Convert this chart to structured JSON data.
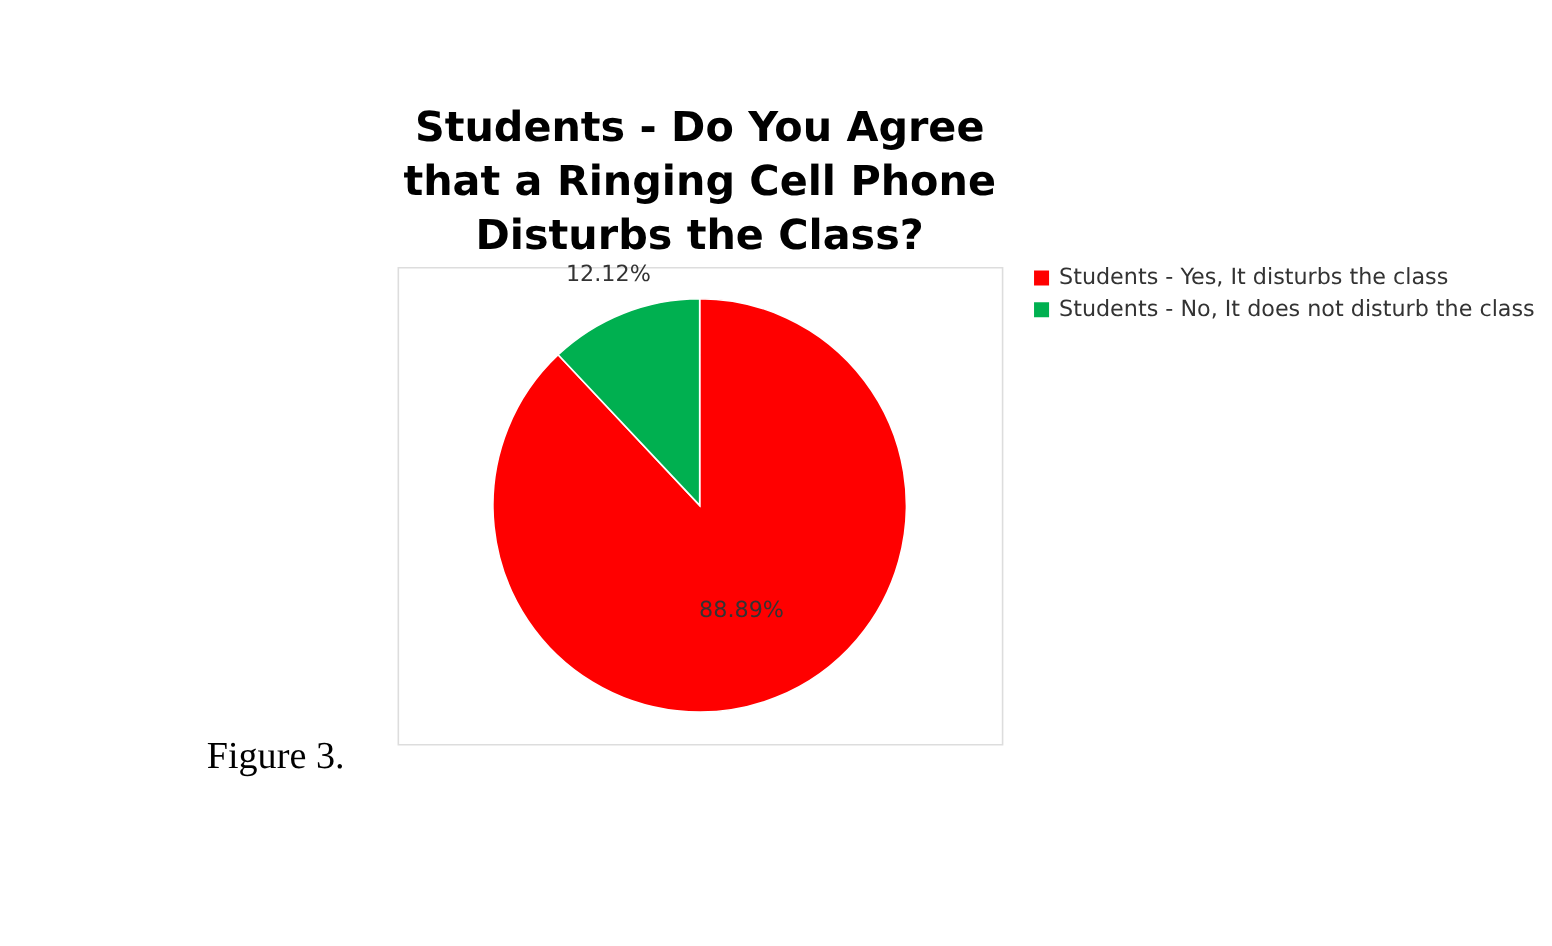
{
  "chart_data": {
    "type": "pie",
    "title": "Students - Do You Agree that a Ringing Cell Phone Disturbs the Class?",
    "categories": [
      "Students - Yes, It disturbs the class",
      "Students - No, It does not disturb the class"
    ],
    "values": [
      88.89,
      12.12
    ],
    "colors": [
      "#ff0000",
      "#00b050"
    ],
    "value_labels": [
      "88.89%",
      "12.12%"
    ],
    "legend": "right",
    "annotations": [
      "Figure 3."
    ]
  }
}
